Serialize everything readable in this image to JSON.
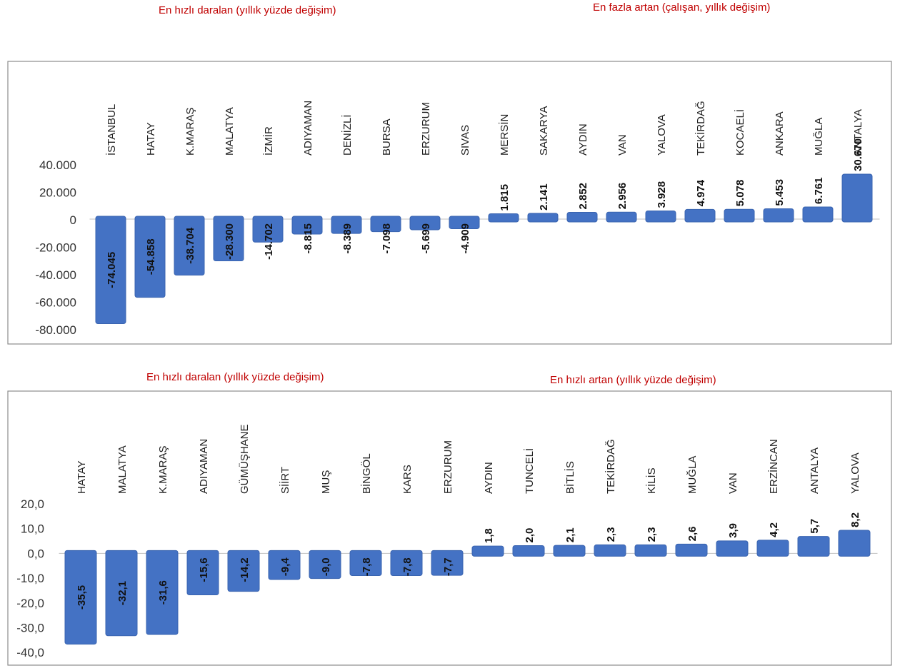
{
  "titles": {
    "top_left": "En hızlı daralan (yıllık yüzde değişim)",
    "top_right": "En fazla artan (çalışan, yıllık değişim)",
    "bottom_left": "En hızlı daralan (yıllık yüzde değişim)",
    "bottom_right": "En hızlı artan (yıllık yüzde değişim)"
  },
  "colors": {
    "bar": "#4472c4",
    "bar_edge": "#3a64b0",
    "border": "#8c8c8c",
    "title": "#c00000"
  },
  "chart_data": [
    {
      "type": "bar",
      "title": "",
      "categories": [
        "İSTANBUL",
        "HATAY",
        "K.MARAŞ",
        "MALATYA",
        "İZMİR",
        "ADIYAMAN",
        "DENİZLİ",
        "BURSA",
        "ERZURUM",
        "SIVAS",
        "MERSİN",
        "SAKARYA",
        "AYDIN",
        "VAN",
        "YALOVA",
        "TEKİRDAĞ",
        "KOCAELİ",
        "ANKARA",
        "MUĞLA",
        "ANTALYA"
      ],
      "values": [
        -74045,
        -54858,
        -38704,
        -28300,
        -14702,
        -8815,
        -8389,
        -7098,
        -5699,
        -4909,
        1815,
        2141,
        2852,
        2956,
        3928,
        4974,
        5078,
        5453,
        6761,
        30670
      ],
      "labels": [
        "-74.045",
        "-54.858",
        "-38.704",
        "-28.300",
        "-14.702",
        "-8.815",
        "-8.389",
        "-7.098",
        "-5.699",
        "-4.909",
        "1.815",
        "2.141",
        "2.852",
        "2.956",
        "3.928",
        "4.974",
        "5.078",
        "5.453",
        "6.761",
        "30.670"
      ],
      "yticks": [
        "40.000",
        "20.000",
        "0",
        "-20.000",
        "-40.000",
        "-60.000",
        "-80.000"
      ],
      "ylim": [
        -80000,
        40000
      ],
      "grid": false,
      "legend": "none"
    },
    {
      "type": "bar",
      "title": "",
      "categories": [
        "HATAY",
        "MALATYA",
        "K.MARAŞ",
        "ADIYAMAN",
        "GÜMÜŞHANE",
        "SİİRT",
        "MUŞ",
        "BİNGÖL",
        "KARS",
        "ERZURUM",
        "AYDIN",
        "TUNCELİ",
        "BİTLİS",
        "TEKİRDAĞ",
        "KİLİS",
        "MUĞLA",
        "VAN",
        "ERZİNCAN",
        "ANTALYA",
        "YALOVA"
      ],
      "values": [
        -35.5,
        -32.1,
        -31.6,
        -15.6,
        -14.2,
        -9.4,
        -9.0,
        -7.8,
        -7.8,
        -7.7,
        1.8,
        2.0,
        2.1,
        2.3,
        2.3,
        2.6,
        3.9,
        4.2,
        5.7,
        8.2
      ],
      "labels": [
        "-35,5",
        "-32,1",
        "-31,6",
        "-15,6",
        "-14,2",
        "-9,4",
        "-9,0",
        "-7,8",
        "-7,8",
        "-7,7",
        "1,8",
        "2,0",
        "2,1",
        "2,3",
        "2,3",
        "2,6",
        "3,9",
        "4,2",
        "5,7",
        "8,2"
      ],
      "yticks": [
        "20,0",
        "10,0",
        "0,0",
        "-10,0",
        "-20,0",
        "-30,0",
        "-40,0"
      ],
      "ylim": [
        -40,
        20
      ],
      "grid": false,
      "legend": "none"
    }
  ]
}
